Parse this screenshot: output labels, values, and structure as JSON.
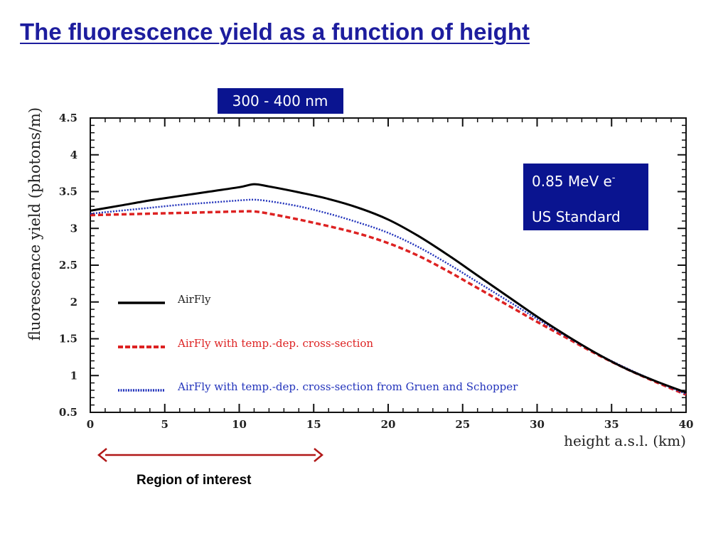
{
  "slide": {
    "title": "The fluorescence yield as a function of height",
    "region_label": "Region of interest"
  },
  "colors": {
    "title": "#1d1d9e",
    "box_bg": "#0a1490",
    "box_text": "#ffffff",
    "airfly": "#000000",
    "airfly_temp": "#dd2222",
    "airfly_gruen": "#2233bb",
    "arrow": "#b11818"
  },
  "chart_data": {
    "type": "line",
    "ylabel": "fluorescence yield (photons/m)",
    "xlabel": "height a.s.l. (km)",
    "xlim": [
      0,
      40
    ],
    "ylim": [
      0.5,
      4.5
    ],
    "xticks": [
      "0",
      "5",
      "10",
      "15",
      "20",
      "25",
      "30",
      "35",
      "40"
    ],
    "yticks": [
      "0.5",
      "1",
      "1.5",
      "2",
      "2.5",
      "3",
      "3.5",
      "4",
      "4.5"
    ],
    "grid": false,
    "legend_position": "lower-left",
    "annotations": {
      "wavelength_box": "300 - 400 nm",
      "energy_box_line1": "0.85 MeV e",
      "energy_box_superscript": "-",
      "energy_box_line2": "US Standard"
    },
    "series": [
      {
        "name": "AirFly",
        "style": "solid",
        "x": [
          0,
          2,
          4,
          6,
          8,
          10,
          11,
          12,
          14,
          16,
          18,
          20,
          22,
          24,
          26,
          28,
          30,
          32,
          34,
          36,
          38,
          40
        ],
        "y": [
          3.24,
          3.31,
          3.38,
          3.44,
          3.5,
          3.56,
          3.6,
          3.57,
          3.49,
          3.4,
          3.28,
          3.12,
          2.9,
          2.64,
          2.36,
          2.08,
          1.8,
          1.54,
          1.3,
          1.09,
          0.92,
          0.77
        ]
      },
      {
        "name": "AirFly with temp.-dep. cross-section",
        "style": "dashed",
        "x": [
          0,
          2,
          4,
          6,
          8,
          10,
          11,
          12,
          14,
          16,
          18,
          20,
          22,
          24,
          26,
          28,
          30,
          32,
          34,
          36,
          38,
          40
        ],
        "y": [
          3.18,
          3.19,
          3.2,
          3.21,
          3.22,
          3.23,
          3.23,
          3.2,
          3.12,
          3.03,
          2.93,
          2.8,
          2.63,
          2.42,
          2.19,
          1.96,
          1.73,
          1.51,
          1.29,
          1.09,
          0.91,
          0.74
        ]
      },
      {
        "name": "AirFly with temp.-dep. cross-section from Gruen and Schopper",
        "style": "dotted",
        "x": [
          0,
          2,
          4,
          6,
          8,
          10,
          11,
          12,
          14,
          16,
          18,
          20,
          22,
          24,
          26,
          28,
          30,
          32,
          34,
          36,
          38,
          40
        ],
        "y": [
          3.2,
          3.24,
          3.28,
          3.32,
          3.35,
          3.38,
          3.39,
          3.37,
          3.3,
          3.2,
          3.08,
          2.94,
          2.75,
          2.52,
          2.27,
          2.02,
          1.77,
          1.53,
          1.3,
          1.1,
          0.92,
          0.75
        ]
      }
    ]
  }
}
